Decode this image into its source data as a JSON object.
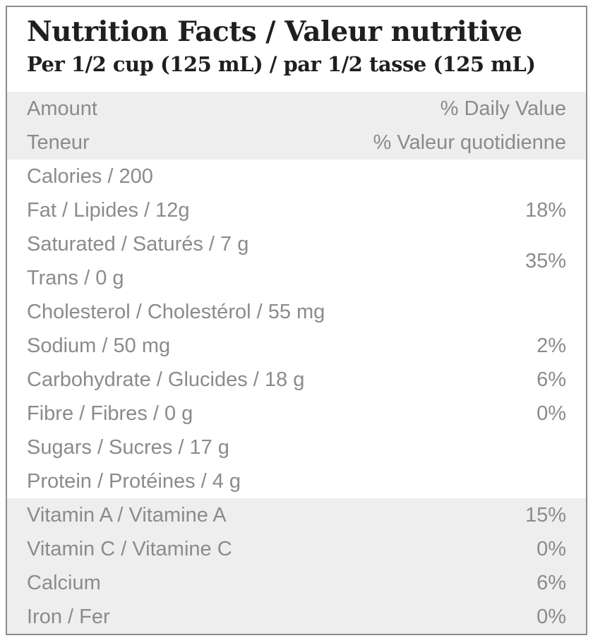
{
  "title": "Nutrition Facts / Valeur nutritive",
  "serving": "Per 1/2 cup (125 mL) / par 1/2 tasse (125 mL)",
  "header": {
    "amount_en": "Amount",
    "amount_fr": "Teneur",
    "daily_value_en": "% Daily Value",
    "daily_value_fr": "% Valeur quotidienne"
  },
  "nutrients": {
    "calories": {
      "label": "Calories / 200",
      "dv": ""
    },
    "fat": {
      "label": "Fat / Lipides / 12g",
      "dv": "18%"
    },
    "saturated": {
      "label": "Saturated / Saturés / 7 g"
    },
    "trans": {
      "label": "Trans / 0 g"
    },
    "sat_trans_dv": "35%",
    "cholesterol": {
      "label": "Cholesterol / Cholestérol / 55 mg",
      "dv": ""
    },
    "sodium": {
      "label": "Sodium / 50 mg",
      "dv": "2%"
    },
    "carbohydrate": {
      "label": "Carbohydrate / Glucides / 18 g",
      "dv": "6%"
    },
    "fibre": {
      "label": "Fibre / Fibres / 0 g",
      "dv": "0%"
    },
    "sugars": {
      "label": "Sugars / Sucres / 17 g",
      "dv": ""
    },
    "protein": {
      "label": "Protein / Protéines / 4 g",
      "dv": ""
    }
  },
  "micronutrients": {
    "vitamin_a": {
      "label": "Vitamin A / Vitamine A",
      "dv": "15%"
    },
    "vitamin_c": {
      "label": "Vitamin C / Vitamine C",
      "dv": "0%"
    },
    "calcium": {
      "label": "Calcium",
      "dv": "6%"
    },
    "iron": {
      "label": "Iron / Fer",
      "dv": "0%"
    }
  },
  "colors": {
    "band_bg": "#eeeeee",
    "text_gray": "#8b8b8b",
    "title_color": "#1f1f1f",
    "border_color": "#8c8c8c"
  }
}
